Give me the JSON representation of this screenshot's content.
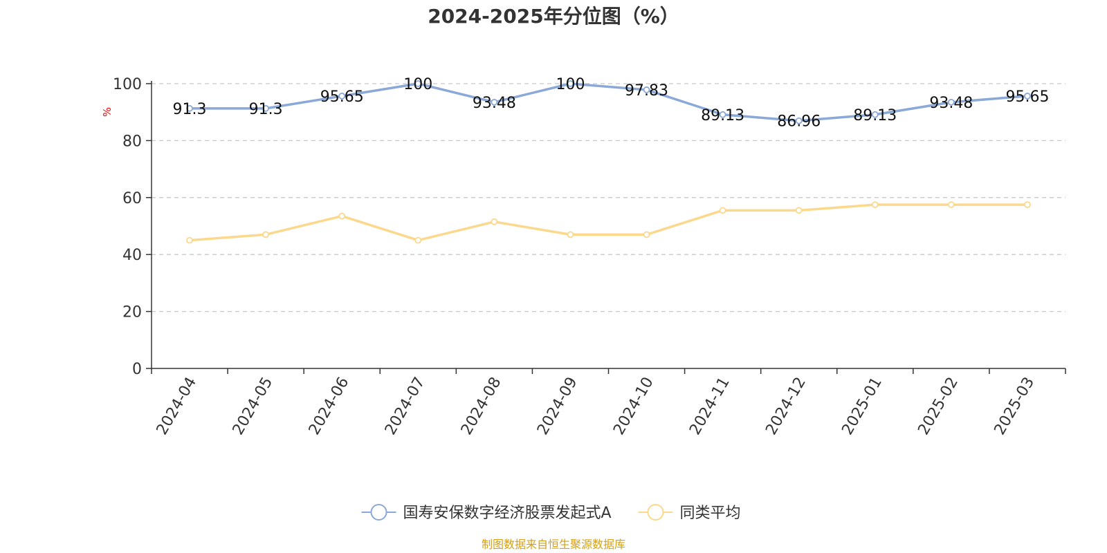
{
  "colors": {
    "series_1": "#8aa8d8",
    "series_2": "#fbd88c",
    "axis": "#333333",
    "grid": "#c8c8c8",
    "unit": "#ff0000",
    "source": "#d4a017"
  },
  "source_text": "制图数据来自恒生聚源数据库",
  "chart_data": {
    "type": "line",
    "title": "2024-2025年分位图（%）",
    "ylabel": "%",
    "xlabel": "",
    "ylim": [
      0,
      100
    ],
    "yticks": [
      0,
      20,
      40,
      60,
      80,
      100
    ],
    "grid": true,
    "legend_position": "bottom",
    "categories": [
      "2024-04",
      "2024-05",
      "2024-06",
      "2024-07",
      "2024-08",
      "2024-09",
      "2024-10",
      "2024-11",
      "2024-12",
      "2025-01",
      "2025-02",
      "2025-03"
    ],
    "series": [
      {
        "name": "国寿安保数字经济股票发起式A",
        "values": [
          91.3,
          91.3,
          95.65,
          100,
          93.48,
          100,
          97.83,
          89.13,
          86.96,
          89.13,
          93.48,
          95.65
        ],
        "data_labels": [
          "91.3",
          "91.3",
          "95.65",
          "100",
          "93.48",
          "100",
          "97.83",
          "89.13",
          "86.96",
          "89.13",
          "93.48",
          "95.65"
        ]
      },
      {
        "name": "同类平均",
        "values": [
          45,
          47,
          53.5,
          45,
          51.5,
          47,
          47,
          55.5,
          55.5,
          57.5,
          57.5,
          57.5
        ]
      }
    ]
  }
}
